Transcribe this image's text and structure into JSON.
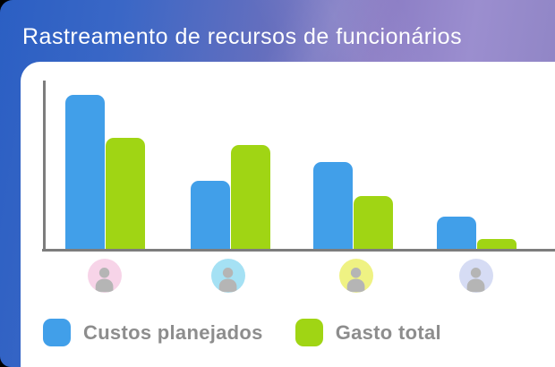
{
  "title": "Rastreamento de recursos de funcionários",
  "colors": {
    "planned_bar": "#419fe9",
    "spent_bar": "#a0d514",
    "axis": "#7d7d7d",
    "legend_text": "#8d8d8d",
    "title_text": "#ffffff",
    "header_gradient_left": "#2b5fc3",
    "header_gradient_right": "#9b8ecf",
    "card_background": "#ffffff",
    "avatar_silhouette": "#b5b5b5"
  },
  "chart_data": {
    "type": "bar",
    "title": "Rastreamento de recursos de funcionários",
    "categories": [
      "employee-1",
      "employee-2",
      "employee-3",
      "employee-4"
    ],
    "category_icons": [
      {
        "name": "person-avatar-icon",
        "background": "#f7d4e8"
      },
      {
        "name": "person-avatar-icon",
        "background": "#a5e1f4"
      },
      {
        "name": "person-avatar-icon",
        "background": "#eff283"
      },
      {
        "name": "person-avatar-icon",
        "background": "#d6dcf4"
      }
    ],
    "series": [
      {
        "name": "Custos planejados",
        "color": "#419fe9",
        "values": [
          91,
          41,
          52,
          20
        ]
      },
      {
        "name": "Gasto total",
        "color": "#a0d514",
        "values": [
          66,
          62,
          32,
          7
        ]
      }
    ],
    "xlabel": "",
    "ylabel": "",
    "ylim": [
      0,
      100
    ],
    "grid": false,
    "tick_labels_visible": false,
    "legend_position": "bottom"
  },
  "legend": {
    "items": [
      {
        "label": "Custos planejados",
        "color": "#419fe9"
      },
      {
        "label": "Gasto total",
        "color": "#a0d514"
      }
    ]
  }
}
